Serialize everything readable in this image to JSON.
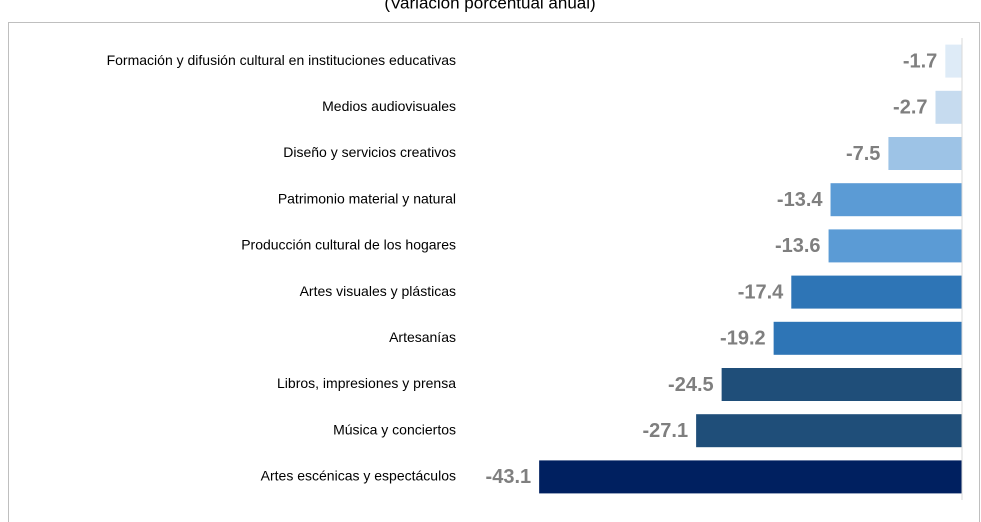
{
  "chart_data": {
    "type": "barh",
    "subtitle": "(Variación porcentual anual)",
    "categories": [
      "Formación y difusión cultural en instituciones educativas",
      "Medios audiovisuales",
      "Diseño y servicios creativos",
      "Patrimonio material y natural",
      "Producción cultural de los hogares",
      "Artes visuales y plásticas",
      "Artesanías",
      "Libros, impresiones y prensa",
      "Música y conciertos",
      "Artes escénicas y espectáculos"
    ],
    "values": [
      -1.7,
      -2.7,
      -7.5,
      -13.4,
      -13.6,
      -17.4,
      -19.2,
      -24.5,
      -27.1,
      -43.1
    ],
    "colors": [
      "#deebf7",
      "#c6dbef",
      "#9dc3e6",
      "#5b9bd5",
      "#5b9bd5",
      "#2e75b6",
      "#2e75b6",
      "#1f4e79",
      "#1f4e79",
      "#002060"
    ],
    "xlim": [
      -45,
      0
    ]
  }
}
